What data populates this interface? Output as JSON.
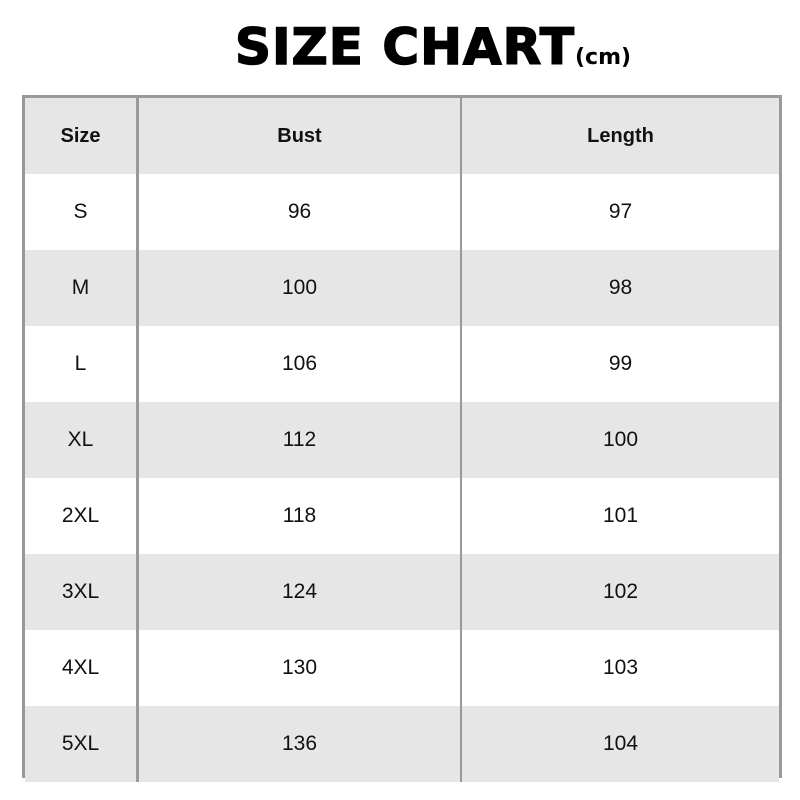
{
  "title": {
    "main": "SIZE CHART",
    "unit": "(cm)"
  },
  "table": {
    "headers": [
      "Size",
      "Bust",
      "Length"
    ],
    "rows": [
      [
        "S",
        "96",
        "97"
      ],
      [
        "M",
        "100",
        "98"
      ],
      [
        "L",
        "106",
        "99"
      ],
      [
        "XL",
        "112",
        "100"
      ],
      [
        "2XL",
        "118",
        "101"
      ],
      [
        "3XL",
        "124",
        "102"
      ],
      [
        "4XL",
        "130",
        "103"
      ],
      [
        "5XL",
        "136",
        "104"
      ]
    ]
  },
  "colors": {
    "border": "#9a9a9a",
    "stripe": "#e6e6e6",
    "background": "#ffffff"
  }
}
